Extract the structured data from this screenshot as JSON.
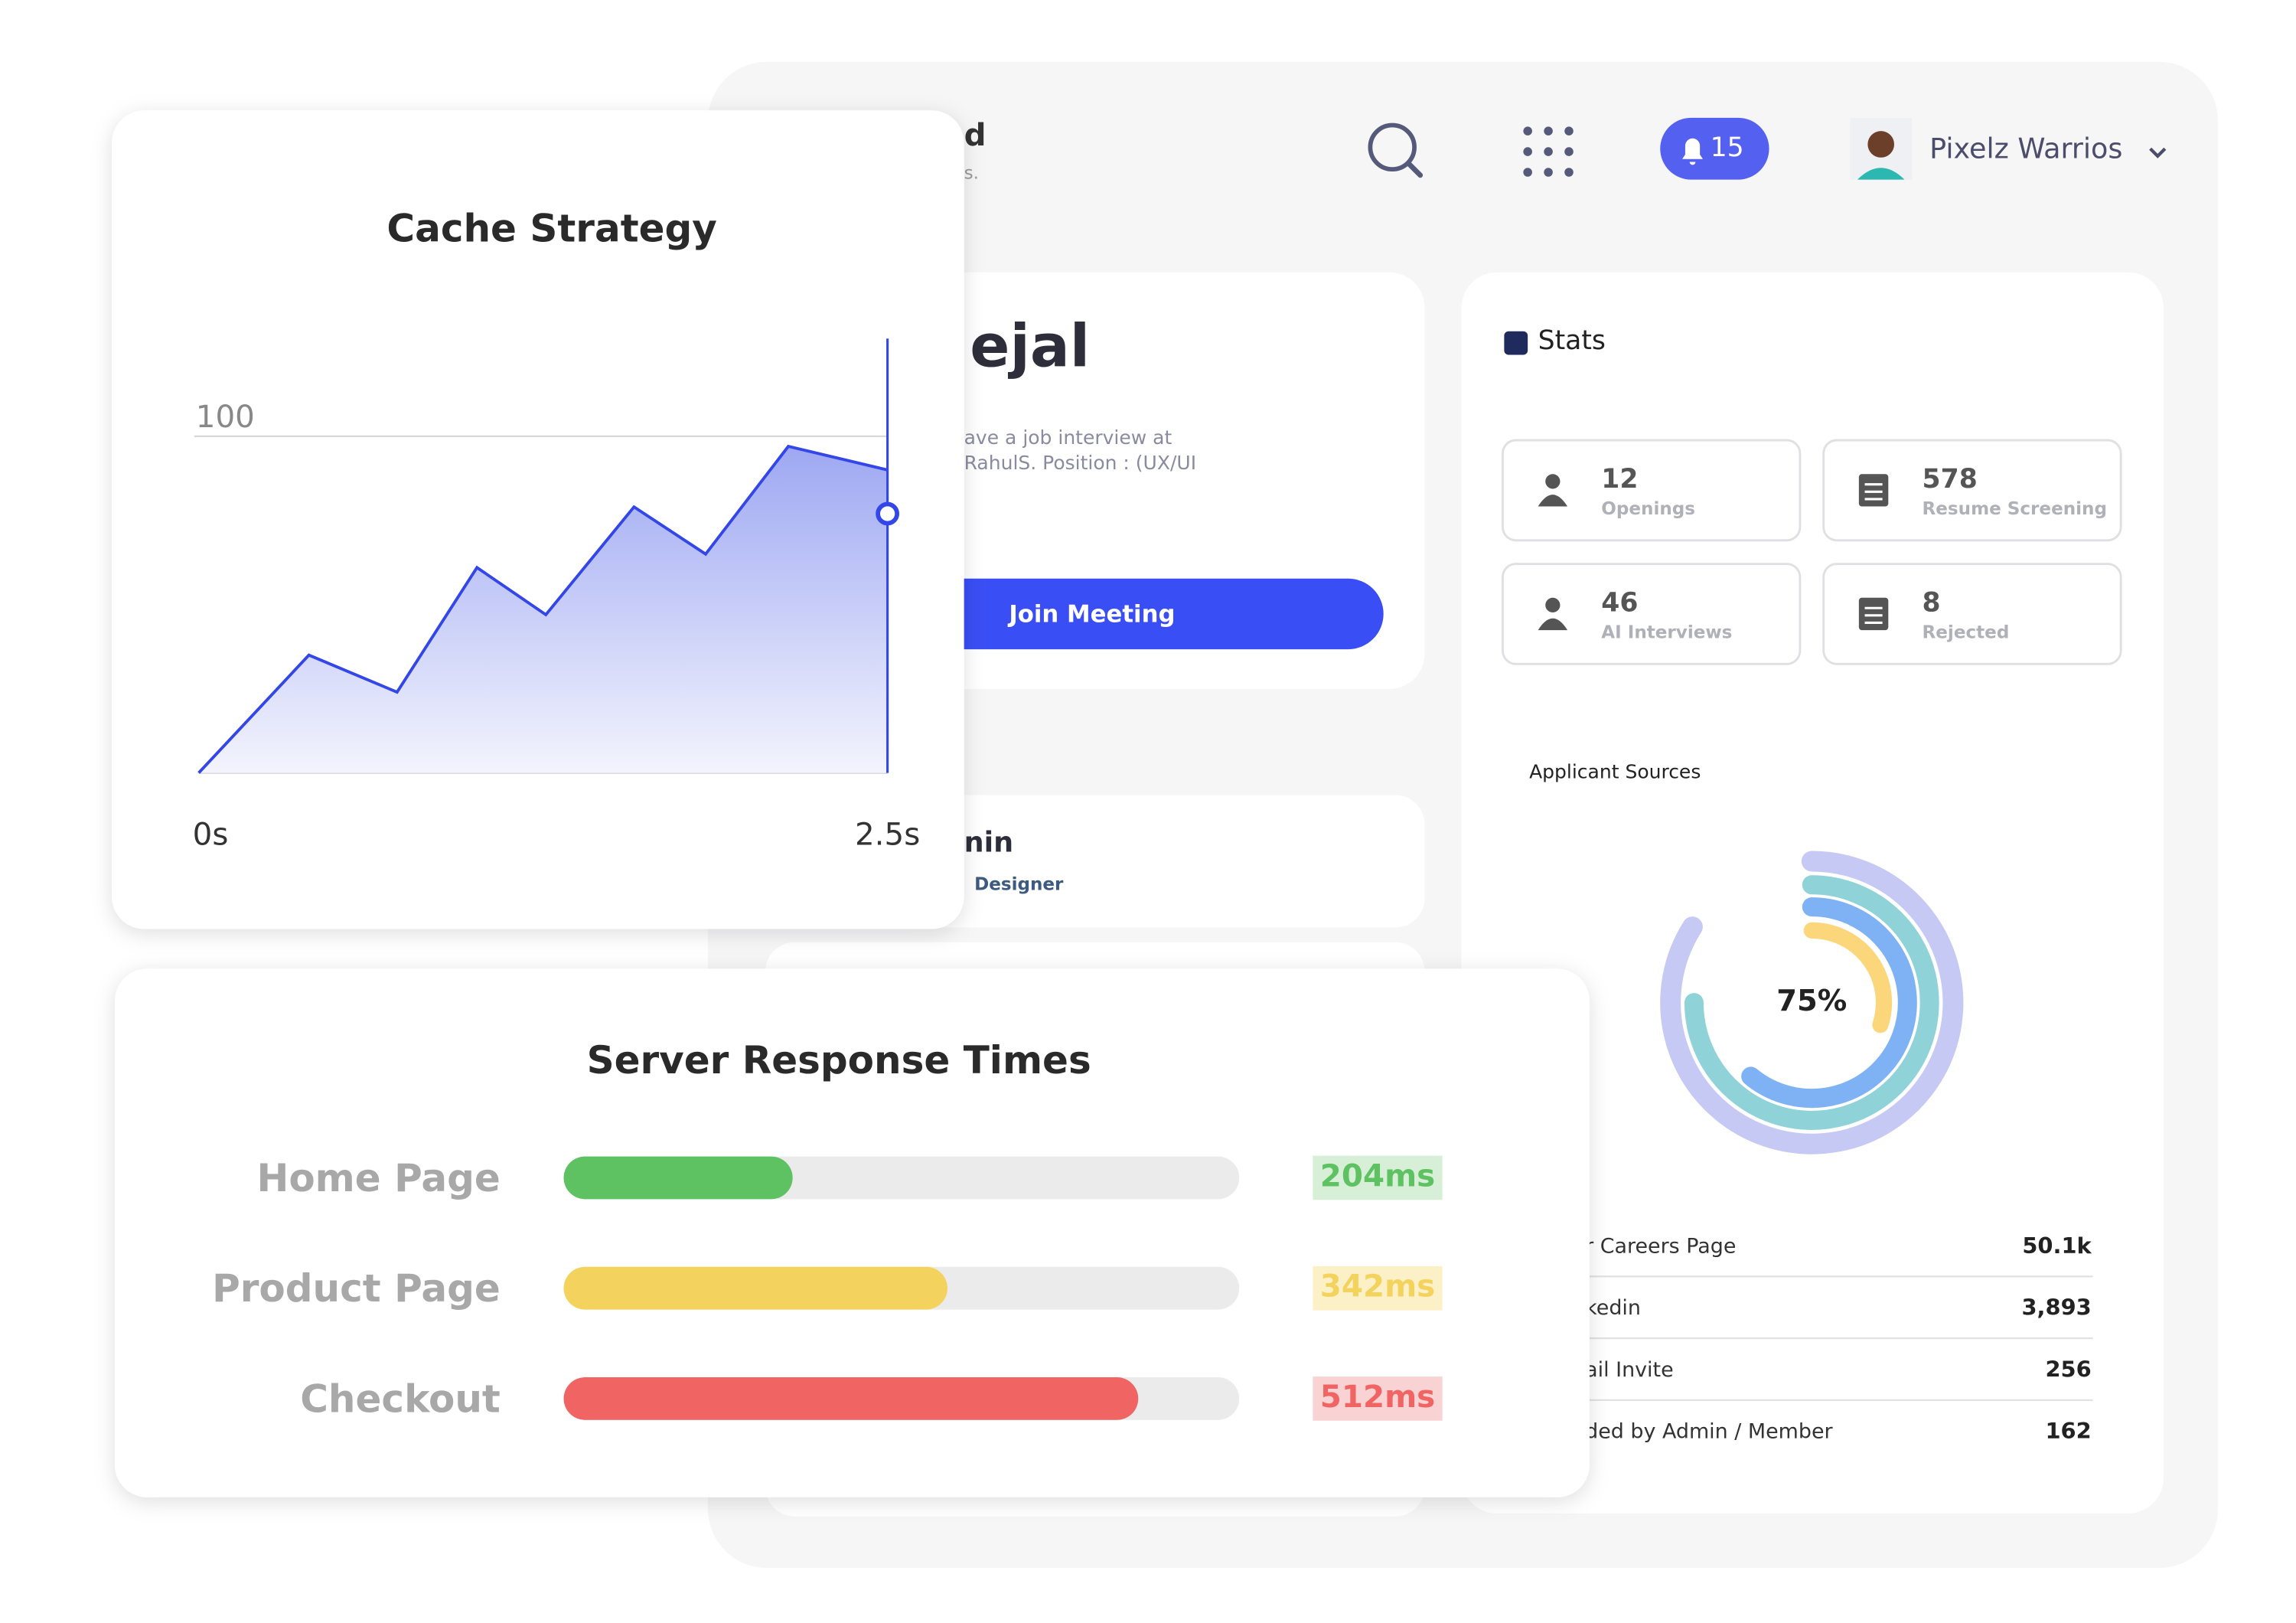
{
  "header": {
    "title": "d",
    "subtitle": "s.",
    "notifications": 15,
    "user": "Pixelz Warrios"
  },
  "meeting_card": {
    "name": "ejal",
    "lines": [
      "ave a job interview at",
      "RahulS. Position : (UX/UI"
    ],
    "button": "Join Meeting"
  },
  "candidate_card": {
    "name": "nin",
    "role": "Designer"
  },
  "stats": {
    "title": "Stats",
    "items": [
      {
        "value": 12,
        "label": "Openings"
      },
      {
        "value": 578,
        "label": "Resume Screening"
      },
      {
        "value": 46,
        "label": "AI Interviews"
      },
      {
        "value": 8,
        "label": "Rejected"
      }
    ]
  },
  "sources_table": {
    "rows": [
      {
        "label": "r Careers Page",
        "value": "50.1k"
      },
      {
        "label": "kedin",
        "value": "3,893"
      },
      {
        "label": "ail Invite",
        "value": "256"
      },
      {
        "label": "ded by Admin / Member",
        "value": "162"
      }
    ]
  },
  "chart_data": [
    {
      "type": "area",
      "title": "Cache Strategy",
      "x": [
        0,
        0.4,
        0.72,
        1.01,
        1.26,
        1.58,
        1.84,
        2.14,
        2.5
      ],
      "values": [
        0,
        35,
        24,
        61,
        47,
        79,
        65,
        97,
        90
      ],
      "color": "#3346e8",
      "xlim": [
        0,
        2.5
      ],
      "ylim": [
        0,
        129
      ],
      "xticks": [
        {
          "value": 0,
          "label": "0s"
        },
        {
          "value": 2.5,
          "label": "2.5s"
        }
      ],
      "yticks": [
        100
      ],
      "grid": true,
      "cursor": {
        "x": 2.5,
        "y": 77
      }
    },
    {
      "type": "hbar",
      "title": "Server Response Times",
      "categories": [
        "Home Page",
        "Product Page",
        "Checkout"
      ],
      "values": [
        204,
        342,
        512
      ],
      "value_labels": [
        "204ms",
        "342ms",
        "512ms"
      ],
      "colors": [
        "#5ec262",
        "#f3d35e",
        "#f06464"
      ],
      "xlim": [
        0,
        602
      ]
    },
    {
      "type": "radial",
      "title": "Applicant Sources",
      "center_label": "75%",
      "values": [
        84,
        75,
        61,
        30
      ],
      "colors": [
        "#c5c9f4",
        "#8fd3d8",
        "#7fb2f4",
        "#fbd67a"
      ],
      "ylim": [
        0,
        100
      ]
    }
  ]
}
